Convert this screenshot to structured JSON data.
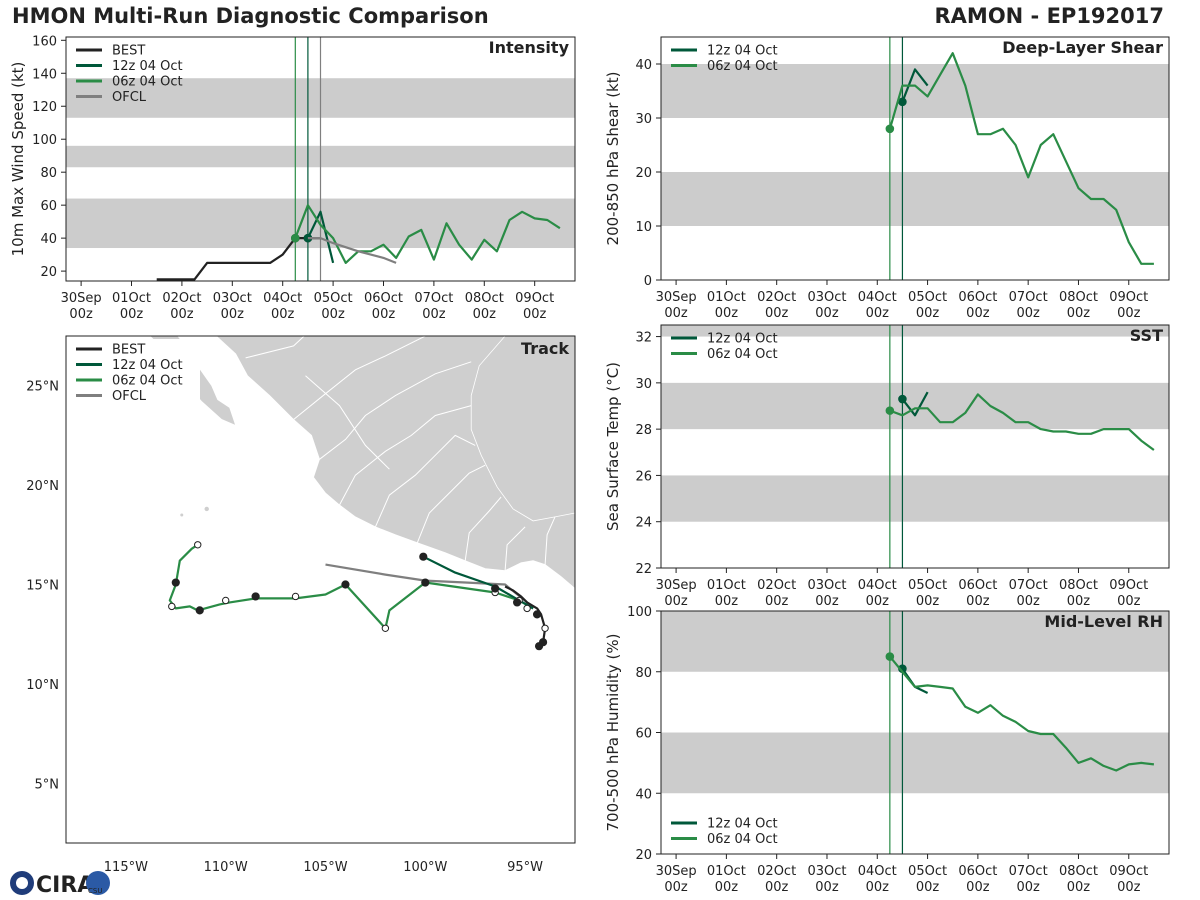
{
  "header": {
    "title": "HMON Multi-Run Diagnostic Comparison",
    "storm": "RAMON - EP192017"
  },
  "logo": {
    "text": "CIRA",
    "sub": "CSU"
  },
  "colors": {
    "best": "#222222",
    "run12": "#00583a",
    "run06": "#2a8c46",
    "ofcl": "#7f7f7f",
    "band": "#cccccc",
    "land": "#cfcfcf",
    "border": "#ffffff"
  },
  "time_ticks": [
    {
      "d": "30Sep",
      "h": "00z"
    },
    {
      "d": "01Oct",
      "h": "00z"
    },
    {
      "d": "02Oct",
      "h": "00z"
    },
    {
      "d": "03Oct",
      "h": "00z"
    },
    {
      "d": "04Oct",
      "h": "00z"
    },
    {
      "d": "05Oct",
      "h": "00z"
    },
    {
      "d": "06Oct",
      "h": "00z"
    },
    {
      "d": "07Oct",
      "h": "00z"
    },
    {
      "d": "08Oct",
      "h": "00z"
    },
    {
      "d": "09Oct",
      "h": "00z"
    }
  ],
  "chart_data": [
    {
      "id": "intensity",
      "type": "line",
      "title": "Intensity",
      "xlabel": "",
      "ylabel": "10m Max Wind Speed (kt)",
      "x_unit": "days since 30Sep 00z",
      "xlim": [
        -0.3,
        9.8
      ],
      "ylim": [
        14,
        162
      ],
      "yticks": [
        20,
        40,
        60,
        80,
        100,
        120,
        140,
        160
      ],
      "bands": [
        [
          34,
          64
        ],
        [
          83,
          96
        ],
        [
          113,
          137
        ]
      ],
      "vlines": [
        {
          "x": 4.25,
          "s": "run06"
        },
        {
          "x": 4.5,
          "s": "run12"
        },
        {
          "x": 4.75,
          "s": "ofcl"
        }
      ],
      "legend": [
        "BEST",
        "12z 04 Oct",
        "06z 04 Oct",
        "OFCL"
      ],
      "series": [
        {
          "name": "BEST",
          "key": "best",
          "x": [
            1.5,
            1.75,
            2.0,
            2.25,
            2.5,
            2.75,
            3.0,
            3.25,
            3.5,
            3.75,
            4.0,
            4.25,
            4.5,
            4.75
          ],
          "y": [
            15,
            15,
            15,
            15,
            25,
            25,
            25,
            25,
            25,
            25,
            30,
            40,
            40,
            40
          ],
          "markers": [
            {
              "x": 4.25,
              "y": 40,
              "fill": "solid"
            },
            {
              "x": 4.5,
              "y": 40,
              "fill": "solid"
            }
          ]
        },
        {
          "name": "12z 04 Oct",
          "key": "run12",
          "x": [
            4.5,
            4.75,
            5.0
          ],
          "y": [
            40,
            56,
            25
          ],
          "markers": [
            {
              "x": 4.5,
              "y": 40,
              "fill": "solid"
            }
          ]
        },
        {
          "name": "06z 04 Oct",
          "key": "run06",
          "x": [
            4.25,
            4.5,
            4.75,
            5.0,
            5.25,
            5.5,
            5.75,
            6.0,
            6.25,
            6.5,
            6.75,
            7.0,
            7.25,
            7.5,
            7.75,
            8.0,
            8.25,
            8.5,
            8.75,
            9.0,
            9.25,
            9.5
          ],
          "y": [
            40,
            60,
            48,
            40,
            25,
            32,
            32,
            36,
            28,
            41,
            45,
            27,
            49,
            36,
            27,
            39,
            32,
            51,
            56,
            52,
            51,
            46
          ],
          "markers": [
            {
              "x": 4.25,
              "y": 40,
              "fill": "solid"
            }
          ]
        },
        {
          "name": "OFCL",
          "key": "ofcl",
          "x": [
            4.5,
            4.75,
            5.0,
            5.5,
            6.0,
            6.25
          ],
          "y": [
            40,
            40,
            37,
            32,
            28,
            25
          ],
          "markers": []
        }
      ]
    },
    {
      "id": "shear",
      "type": "line",
      "title": "Deep-Layer Shear",
      "xlabel": "",
      "ylabel": "200-850 hPa Shear (kt)",
      "x_unit": "days since 30Sep 00z",
      "xlim": [
        -0.3,
        9.8
      ],
      "ylim": [
        0,
        45
      ],
      "yticks": [
        0,
        10,
        20,
        30,
        40
      ],
      "bands": [
        [
          10,
          20
        ],
        [
          30,
          40
        ]
      ],
      "vlines": [
        {
          "x": 4.25,
          "s": "run06"
        },
        {
          "x": 4.5,
          "s": "run12"
        }
      ],
      "legend": [
        "12z 04 Oct",
        "06z 04 Oct"
      ],
      "series": [
        {
          "name": "12z 04 Oct",
          "key": "run12",
          "x": [
            4.5,
            4.75,
            5.0
          ],
          "y": [
            33,
            39,
            36
          ],
          "markers": [
            {
              "x": 4.5,
              "y": 33,
              "fill": "solid"
            }
          ]
        },
        {
          "name": "06z 04 Oct",
          "key": "run06",
          "x": [
            4.25,
            4.5,
            4.75,
            5.0,
            5.25,
            5.5,
            5.75,
            6.0,
            6.25,
            6.5,
            6.75,
            7.0,
            7.25,
            7.5,
            7.75,
            8.0,
            8.25,
            8.5,
            8.75,
            9.0,
            9.25,
            9.5
          ],
          "y": [
            28,
            36,
            36,
            34,
            38,
            42,
            36,
            27,
            27,
            28,
            25,
            19,
            25,
            27,
            22,
            17,
            15,
            15,
            13,
            7,
            3,
            3
          ],
          "markers": [
            {
              "x": 4.25,
              "y": 28,
              "fill": "solid"
            }
          ]
        }
      ]
    },
    {
      "id": "sst",
      "type": "line",
      "title": "SST",
      "xlabel": "",
      "ylabel": "Sea Surface Temp (°C)",
      "x_unit": "days since 30Sep 00z",
      "xlim": [
        -0.3,
        9.8
      ],
      "ylim": [
        22,
        32.5
      ],
      "yticks": [
        22,
        24,
        26,
        28,
        30,
        32
      ],
      "bands": [
        [
          24,
          26
        ],
        [
          28,
          30
        ],
        [
          32,
          32.5
        ]
      ],
      "vlines": [
        {
          "x": 4.25,
          "s": "run06"
        },
        {
          "x": 4.5,
          "s": "run12"
        }
      ],
      "legend": [
        "12z 04 Oct",
        "06z 04 Oct"
      ],
      "series": [
        {
          "name": "12z 04 Oct",
          "key": "run12",
          "x": [
            4.5,
            4.75,
            5.0
          ],
          "y": [
            29.3,
            28.6,
            29.6
          ],
          "markers": [
            {
              "x": 4.5,
              "y": 29.3,
              "fill": "solid"
            }
          ]
        },
        {
          "name": "06z 04 Oct",
          "key": "run06",
          "x": [
            4.25,
            4.5,
            4.75,
            5.0,
            5.25,
            5.5,
            5.75,
            6.0,
            6.25,
            6.5,
            6.75,
            7.0,
            7.25,
            7.5,
            7.75,
            8.0,
            8.25,
            8.5,
            8.75,
            9.0,
            9.25,
            9.5
          ],
          "y": [
            28.8,
            28.6,
            28.9,
            28.9,
            28.3,
            28.3,
            28.7,
            29.5,
            29.0,
            28.7,
            28.3,
            28.3,
            28.0,
            27.9,
            27.9,
            27.8,
            27.8,
            28.0,
            28.0,
            28.0,
            27.5,
            27.1
          ],
          "markers": [
            {
              "x": 4.25,
              "y": 28.8,
              "fill": "solid"
            }
          ]
        }
      ]
    },
    {
      "id": "rh",
      "type": "line",
      "title": "Mid-Level RH",
      "xlabel": "",
      "ylabel": "700-500 hPa Humidity (%)",
      "x_unit": "days since 30Sep 00z",
      "xlim": [
        -0.3,
        9.8
      ],
      "ylim": [
        20,
        100
      ],
      "yticks": [
        20,
        40,
        60,
        80,
        100
      ],
      "bands": [
        [
          40,
          60
        ],
        [
          80,
          100
        ]
      ],
      "vlines": [
        {
          "x": 4.25,
          "s": "run06"
        },
        {
          "x": 4.5,
          "s": "run12"
        }
      ],
      "legend": [
        "12z 04 Oct",
        "06z 04 Oct"
      ],
      "series": [
        {
          "name": "12z 04 Oct",
          "key": "run12",
          "x": [
            4.5,
            4.75,
            5.0
          ],
          "y": [
            81,
            75,
            73
          ],
          "markers": [
            {
              "x": 4.5,
              "y": 81,
              "fill": "solid"
            }
          ]
        },
        {
          "name": "06z 04 Oct",
          "key": "run06",
          "x": [
            4.25,
            4.5,
            4.75,
            5.0,
            5.25,
            5.5,
            5.75,
            6.0,
            6.25,
            6.5,
            6.75,
            7.0,
            7.25,
            7.5,
            7.75,
            8.0,
            8.25,
            8.5,
            8.75,
            9.0,
            9.25,
            9.5
          ],
          "y": [
            85,
            80,
            75,
            75.5,
            75,
            74.5,
            68.5,
            66.5,
            69,
            65.5,
            63.5,
            60.5,
            59.5,
            59.5,
            55,
            50,
            51.5,
            49,
            47.5,
            49.5,
            50,
            49.5
          ],
          "markers": [
            {
              "x": 4.25,
              "y": 85,
              "fill": "solid"
            }
          ]
        }
      ]
    },
    {
      "id": "track",
      "type": "scatter",
      "title": "Track",
      "xlabel": "",
      "ylabel": "",
      "xlim": [
        -118.0,
        -92.5
      ],
      "ylim": [
        2.0,
        27.5
      ],
      "xticks": [
        {
          "v": -115,
          "label": "115°W"
        },
        {
          "v": -110,
          "label": "110°W"
        },
        {
          "v": -105,
          "label": "105°W"
        },
        {
          "v": -100,
          "label": "100°W"
        },
        {
          "v": -95,
          "label": "95°W"
        }
      ],
      "yticks": [
        {
          "v": 5,
          "label": "5°N"
        },
        {
          "v": 10,
          "label": "10°N"
        },
        {
          "v": 15,
          "label": "15°N"
        },
        {
          "v": 20,
          "label": "20°N"
        },
        {
          "v": 25,
          "label": "25°N"
        }
      ],
      "legend": [
        "BEST",
        "12z 04 Oct",
        "06z 04 Oct",
        "OFCL"
      ],
      "series": [
        {
          "name": "BEST",
          "key": "best",
          "lon": [
            -94.3,
            -94.1,
            -94.0,
            -94.2,
            -94.4,
            -94.9,
            -95.2,
            -95.6,
            -96.0
          ],
          "lat": [
            11.9,
            12.1,
            12.8,
            13.5,
            13.8,
            14.1,
            14.4,
            14.7,
            14.9
          ],
          "markers": [
            {
              "lon": -94.3,
              "lat": 11.9,
              "fill": "solid"
            },
            {
              "lon": -94.1,
              "lat": 12.1,
              "fill": "solid"
            },
            {
              "lon": -94.0,
              "lat": 12.8,
              "fill": "open"
            },
            {
              "lon": -94.4,
              "lat": 13.5,
              "fill": "solid"
            },
            {
              "lon": -94.9,
              "lat": 13.8,
              "fill": "open"
            },
            {
              "lon": -95.4,
              "lat": 14.1,
              "fill": "solid"
            }
          ]
        },
        {
          "name": "12z 04 Oct",
          "key": "run12",
          "lon": [
            -94.6,
            -96.5,
            -98.5,
            -100.1
          ],
          "lat": [
            13.8,
            14.9,
            15.6,
            16.4
          ],
          "markers": [
            {
              "lon": -96.5,
              "lat": 14.8,
              "fill": "solid"
            },
            {
              "lon": -100.1,
              "lat": 16.4,
              "fill": "solid"
            }
          ]
        },
        {
          "name": "06z 04 Oct",
          "key": "run06",
          "lon": [
            -94.6,
            -95.3,
            -96.5,
            -100.0,
            -101.8,
            -102.0,
            -104.0,
            -105.0,
            -106.5,
            -108.5,
            -109.8,
            -110.3,
            -111.4,
            -111.8,
            -112.5,
            -112.8,
            -112.5,
            -112.3,
            -111.7,
            -111.4
          ],
          "lat": [
            13.8,
            14.2,
            14.6,
            15.1,
            13.7,
            12.8,
            15.0,
            14.5,
            14.3,
            14.3,
            14.1,
            14.0,
            13.7,
            13.9,
            13.8,
            14.2,
            15.0,
            16.2,
            16.8,
            17.0
          ],
          "markers": [
            {
              "lon": -95.3,
              "lat": 14.2,
              "fill": "open"
            },
            {
              "lon": -96.5,
              "lat": 14.6,
              "fill": "open"
            },
            {
              "lon": -100.0,
              "lat": 15.1,
              "fill": "solid"
            },
            {
              "lon": -102.0,
              "lat": 12.8,
              "fill": "open"
            },
            {
              "lon": -104.0,
              "lat": 15.0,
              "fill": "solid"
            },
            {
              "lon": -106.5,
              "lat": 14.4,
              "fill": "open"
            },
            {
              "lon": -108.5,
              "lat": 14.4,
              "fill": "solid"
            },
            {
              "lon": -110.0,
              "lat": 14.2,
              "fill": "open"
            },
            {
              "lon": -111.3,
              "lat": 13.7,
              "fill": "solid"
            },
            {
              "lon": -112.7,
              "lat": 13.9,
              "fill": "open"
            },
            {
              "lon": -112.5,
              "lat": 15.1,
              "fill": "solid"
            },
            {
              "lon": -111.4,
              "lat": 17.0,
              "fill": "open"
            }
          ]
        },
        {
          "name": "OFCL",
          "key": "ofcl",
          "lon": [
            -94.9,
            -96.0,
            -98.0,
            -100.0,
            -102.0,
            -105.0
          ],
          "lat": [
            14.1,
            15.0,
            15.1,
            15.2,
            15.5,
            16.0
          ],
          "markers": []
        }
      ]
    }
  ]
}
